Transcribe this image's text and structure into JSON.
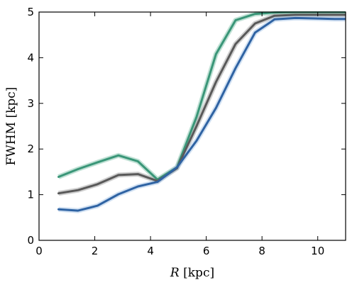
{
  "chart_data": {
    "type": "line",
    "xlabel_var": "R",
    "xlabel_unit": " [kpc]",
    "ylabel": "FWHM [kpc]",
    "xlim": [
      0,
      11
    ],
    "ylim": [
      0,
      5
    ],
    "xticks": [
      0,
      2,
      4,
      6,
      8,
      10
    ],
    "yticks": [
      0,
      1,
      2,
      3,
      4,
      5
    ],
    "grid": false,
    "series": [
      {
        "color": "#3a9678",
        "band_color": "#8cc9b3",
        "x": [
          0.7,
          1.4,
          2.1,
          2.85,
          3.55,
          4.25,
          4.95,
          5.65,
          6.35,
          7.05,
          7.75,
          8.45,
          9.2,
          9.9,
          10.6,
          11.0
        ],
        "y": [
          1.39,
          1.56,
          1.71,
          1.86,
          1.73,
          1.33,
          1.6,
          2.7,
          4.08,
          4.82,
          4.96,
          4.99,
          5.0,
          5.0,
          5.0,
          5.0
        ]
      },
      {
        "color": "#595959",
        "band_color": "#a8a8a8",
        "x": [
          0.7,
          1.4,
          2.1,
          2.85,
          3.55,
          4.25,
          4.95,
          5.65,
          6.35,
          7.05,
          7.75,
          8.45,
          9.2,
          9.9,
          10.6,
          11.0
        ],
        "y": [
          1.03,
          1.1,
          1.23,
          1.43,
          1.45,
          1.3,
          1.58,
          2.5,
          3.47,
          4.3,
          4.75,
          4.92,
          4.94,
          4.94,
          4.94,
          4.94
        ]
      },
      {
        "color": "#2f63a3",
        "band_color": "#a9c6e8",
        "x": [
          0.7,
          1.4,
          2.1,
          2.85,
          3.55,
          4.25,
          4.95,
          5.65,
          6.35,
          7.05,
          7.75,
          8.45,
          9.2,
          9.9,
          10.6,
          11.0
        ],
        "y": [
          0.68,
          0.65,
          0.76,
          1.01,
          1.18,
          1.28,
          1.6,
          2.18,
          2.9,
          3.77,
          4.55,
          4.84,
          4.87,
          4.86,
          4.85,
          4.85
        ]
      }
    ]
  }
}
